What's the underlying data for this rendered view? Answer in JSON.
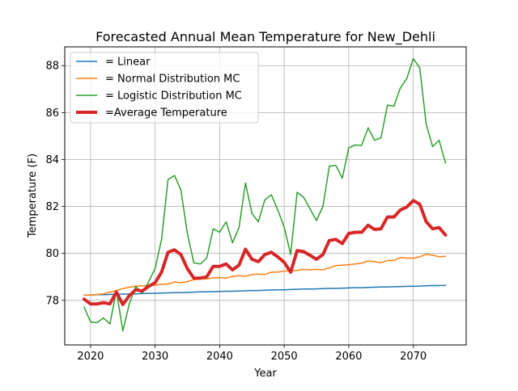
{
  "chart_data": {
    "type": "line",
    "title": "Forecasted Annual Mean Temperature for New_Dehli",
    "xlabel": "Year",
    "ylabel": "Temperature (F)",
    "xlim": [
      2016,
      2078.2
    ],
    "ylim": [
      76.1,
      88.8
    ],
    "xticks": [
      2020,
      2030,
      2040,
      2050,
      2060,
      2070
    ],
    "yticks": [
      78,
      80,
      82,
      84,
      86,
      88
    ],
    "grid": true,
    "legend_position": "top-left",
    "x": [
      2019,
      2020,
      2021,
      2022,
      2023,
      2024,
      2025,
      2026,
      2027,
      2028,
      2029,
      2030,
      2031,
      2032,
      2033,
      2034,
      2035,
      2036,
      2037,
      2038,
      2039,
      2040,
      2041,
      2042,
      2043,
      2044,
      2045,
      2046,
      2047,
      2048,
      2049,
      2050,
      2051,
      2052,
      2053,
      2054,
      2055,
      2056,
      2057,
      2058,
      2059,
      2060,
      2061,
      2062,
      2063,
      2064,
      2065,
      2066,
      2067,
      2068,
      2069,
      2070,
      2071,
      2072,
      2073,
      2074,
      2075
    ],
    "series": [
      {
        "name": " = Linear",
        "color": "#1f77b4",
        "width": 1.5,
        "values": [
          78.22,
          78.23,
          78.24,
          78.24,
          78.25,
          78.26,
          78.27,
          78.27,
          78.28,
          78.29,
          78.3,
          78.3,
          78.31,
          78.32,
          78.33,
          78.33,
          78.34,
          78.35,
          78.36,
          78.36,
          78.37,
          78.38,
          78.39,
          78.39,
          78.4,
          78.41,
          78.42,
          78.42,
          78.43,
          78.44,
          78.45,
          78.45,
          78.46,
          78.47,
          78.48,
          78.48,
          78.49,
          78.5,
          78.51,
          78.51,
          78.52,
          78.53,
          78.54,
          78.54,
          78.55,
          78.56,
          78.57,
          78.57,
          78.58,
          78.59,
          78.6,
          78.6,
          78.61,
          78.62,
          78.63,
          78.63,
          78.64
        ]
      },
      {
        "name": " = Normal Distribution MC",
        "color": "#ff7f0e",
        "width": 1.5,
        "values": [
          78.22,
          78.22,
          78.25,
          78.28,
          78.35,
          78.42,
          78.5,
          78.56,
          78.6,
          78.62,
          78.63,
          78.65,
          78.68,
          78.7,
          78.78,
          78.75,
          78.8,
          78.88,
          78.9,
          78.92,
          78.96,
          78.97,
          78.95,
          79.02,
          79.05,
          79.03,
          79.1,
          79.12,
          79.1,
          79.2,
          79.2,
          79.25,
          79.25,
          79.28,
          79.32,
          79.3,
          79.32,
          79.3,
          79.38,
          79.48,
          79.5,
          79.52,
          79.55,
          79.58,
          79.68,
          79.65,
          79.6,
          79.7,
          79.7,
          79.82,
          79.8,
          79.8,
          79.85,
          79.97,
          79.92,
          79.86,
          79.88
        ]
      },
      {
        "name": " = Logistic Distribution MC",
        "color": "#2ca02c",
        "width": 1.5,
        "values": [
          77.72,
          77.08,
          77.05,
          77.25,
          77.0,
          78.4,
          76.7,
          77.85,
          78.6,
          78.3,
          78.8,
          79.35,
          80.6,
          83.15,
          83.32,
          82.7,
          80.85,
          79.6,
          79.55,
          79.8,
          81.05,
          80.9,
          81.35,
          80.45,
          81.1,
          83.0,
          81.7,
          81.35,
          82.28,
          82.5,
          81.85,
          81.12,
          79.95,
          82.6,
          82.4,
          81.9,
          81.4,
          82.0,
          83.72,
          83.75,
          83.2,
          84.5,
          84.62,
          84.6,
          85.35,
          84.82,
          84.92,
          86.32,
          86.27,
          87.05,
          87.45,
          88.3,
          87.9,
          85.5,
          84.55,
          84.82,
          83.85
        ]
      },
      {
        "name": "=Average Temperature",
        "color": "#d62728",
        "width": 4,
        "values": [
          78.05,
          77.85,
          77.85,
          77.9,
          77.85,
          78.35,
          77.82,
          78.2,
          78.45,
          78.4,
          78.6,
          78.75,
          79.2,
          80.05,
          80.15,
          79.95,
          79.35,
          78.95,
          78.95,
          79.0,
          79.45,
          79.45,
          79.55,
          79.3,
          79.5,
          80.18,
          79.75,
          79.65,
          79.95,
          80.05,
          79.85,
          79.62,
          79.2,
          80.12,
          80.08,
          79.92,
          79.75,
          79.95,
          80.55,
          80.6,
          80.42,
          80.85,
          80.9,
          80.9,
          81.2,
          81.02,
          81.05,
          81.55,
          81.55,
          81.85,
          81.98,
          82.25,
          82.1,
          81.35,
          81.05,
          81.1,
          80.78
        ]
      }
    ]
  }
}
